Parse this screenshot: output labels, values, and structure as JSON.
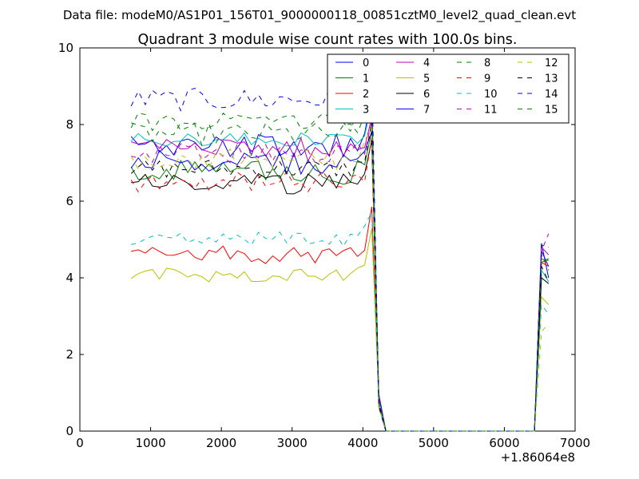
{
  "figure": {
    "suptitle": "Data file: modeM0/AS1P01_156T01_9000000118_00851cztM0_level2_quad_clean.evt",
    "title": "Quadrant 3 module wise count rates with 100.0s bins.",
    "x_offset_label": "+1.86064e8"
  },
  "chart_data": {
    "type": "line",
    "title": "Quadrant 3 module wise count rates with 100.0s bins.",
    "xlabel": "",
    "ylabel": "",
    "xlim": [
      0,
      7000
    ],
    "ylim": [
      0,
      10
    ],
    "x_offset": "+1.86064e8",
    "xticks": [
      0,
      1000,
      2000,
      3000,
      4000,
      5000,
      6000,
      7000
    ],
    "yticks": [
      0,
      2,
      4,
      6,
      8,
      10
    ],
    "grid": false,
    "legend": {
      "placement": "top-right",
      "columns": 4
    },
    "segments": [
      {
        "x_start": 725,
        "x_end": 4225,
        "x_step": 100
      },
      {
        "x_start": 6425,
        "x_end": 6625,
        "x_step": 100
      }
    ],
    "series": [
      {
        "name": "0",
        "color": "#0000ff",
        "dash": "solid",
        "level": 7.45,
        "noise": 0.33,
        "end": [
          4.9,
          4.0
        ]
      },
      {
        "name": "1",
        "color": "#008000",
        "dash": "solid",
        "level": 6.75,
        "noise": 0.32,
        "end": [
          4.4,
          4.5
        ]
      },
      {
        "name": "2",
        "color": "#ff0000",
        "dash": "solid",
        "level": 4.6,
        "noise": 0.23,
        "end": [
          4.4,
          4.3
        ]
      },
      {
        "name": "3",
        "color": "#00bfbf",
        "dash": "solid",
        "level": 7.6,
        "noise": 0.18,
        "end": [
          4.2,
          3.9
        ]
      },
      {
        "name": "4",
        "color": "#bf00bf",
        "dash": "solid",
        "level": 7.35,
        "noise": 0.3,
        "end": [
          4.8,
          4.6
        ]
      },
      {
        "name": "5",
        "color": "#bfbf00",
        "dash": "solid",
        "level": 4.1,
        "noise": 0.22,
        "end": [
          3.5,
          3.3
        ]
      },
      {
        "name": "6",
        "color": "#000000",
        "dash": "solid",
        "level": 6.45,
        "noise": 0.27,
        "end": [
          4.0,
          3.85
        ]
      },
      {
        "name": "7",
        "color": "#0000ff",
        "dash": "solid",
        "level": 7.0,
        "noise": 0.35,
        "end": [
          4.7,
          4.3
        ]
      },
      {
        "name": "8",
        "color": "#008000",
        "dash": "dashed",
        "level": 8.05,
        "noise": 0.25,
        "end": [
          4.5,
          4.4
        ]
      },
      {
        "name": "9",
        "color": "#ff0000",
        "dash": "dashed",
        "level": 6.5,
        "noise": 0.3,
        "end": [
          4.6,
          4.2
        ]
      },
      {
        "name": "10",
        "color": "#00bfbf",
        "dash": "dashed",
        "level": 5.0,
        "noise": 0.2,
        "end": [
          3.3,
          3.05
        ]
      },
      {
        "name": "11",
        "color": "#bf00bf",
        "dash": "dashed",
        "level": 7.25,
        "noise": 0.25,
        "end": [
          4.7,
          5.15
        ]
      },
      {
        "name": "12",
        "color": "#bfbf00",
        "dash": "dashed",
        "level": 7.1,
        "noise": 0.28,
        "end": [
          2.6,
          2.8
        ]
      },
      {
        "name": "13",
        "color": "#000000",
        "dash": "dashed",
        "level": 6.85,
        "noise": 0.26,
        "end": [
          4.3,
          3.9
        ]
      },
      {
        "name": "14",
        "color": "#0000ff",
        "dash": "dashed",
        "level": 8.65,
        "noise": 0.3,
        "end": [
          4.85,
          4.8
        ]
      },
      {
        "name": "15",
        "color": "#008000",
        "dash": "dashed",
        "level": 7.75,
        "noise": 0.3,
        "end": [
          4.5,
          4.45
        ]
      }
    ]
  }
}
